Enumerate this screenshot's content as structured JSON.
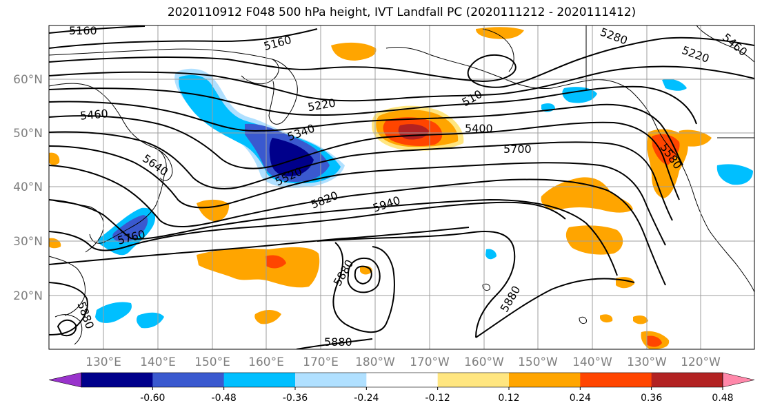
{
  "title": "2020110912 F048 500 hPa height, IVT Landfall PC (2020111212 - 2020111412)",
  "latitude_labels": [
    "60°N",
    "50°N",
    "40°N",
    "30°N",
    "20°N"
  ],
  "longitude_labels": [
    "130°E",
    "140°E",
    "150°E",
    "160°E",
    "170°E",
    "180°W",
    "170°W",
    "160°W",
    "150°W",
    "140°W",
    "130°W",
    "120°W"
  ],
  "contour_labels": [
    {
      "value": "5160"
    },
    {
      "value": "5160"
    },
    {
      "value": "5280"
    },
    {
      "value": "5220"
    },
    {
      "value": "5460"
    },
    {
      "value": "5220"
    },
    {
      "value": "5460"
    },
    {
      "value": "5340"
    },
    {
      "value": "5400"
    },
    {
      "value": "510"
    },
    {
      "value": "5700"
    },
    {
      "value": "5640"
    },
    {
      "value": "5520"
    },
    {
      "value": "5580"
    },
    {
      "value": "5820"
    },
    {
      "value": "5940"
    },
    {
      "value": "5760"
    },
    {
      "value": "5880"
    },
    {
      "value": "5880"
    },
    {
      "value": "5880"
    },
    {
      "value": "5880"
    }
  ],
  "colorbar": {
    "colors": [
      "#9933cc",
      "#00008b",
      "#3a59cf",
      "#00bfff",
      "#b0e0ff",
      "#ffffff",
      "#ffe680",
      "#ffa500",
      "#ff4500",
      "#b22222",
      "#ff88aa"
    ],
    "ticks": [
      "-0.60",
      "-0.48",
      "-0.36",
      "-0.24",
      "-0.12",
      "0.12",
      "0.24",
      "0.36",
      "0.48",
      "0.60"
    ]
  }
}
